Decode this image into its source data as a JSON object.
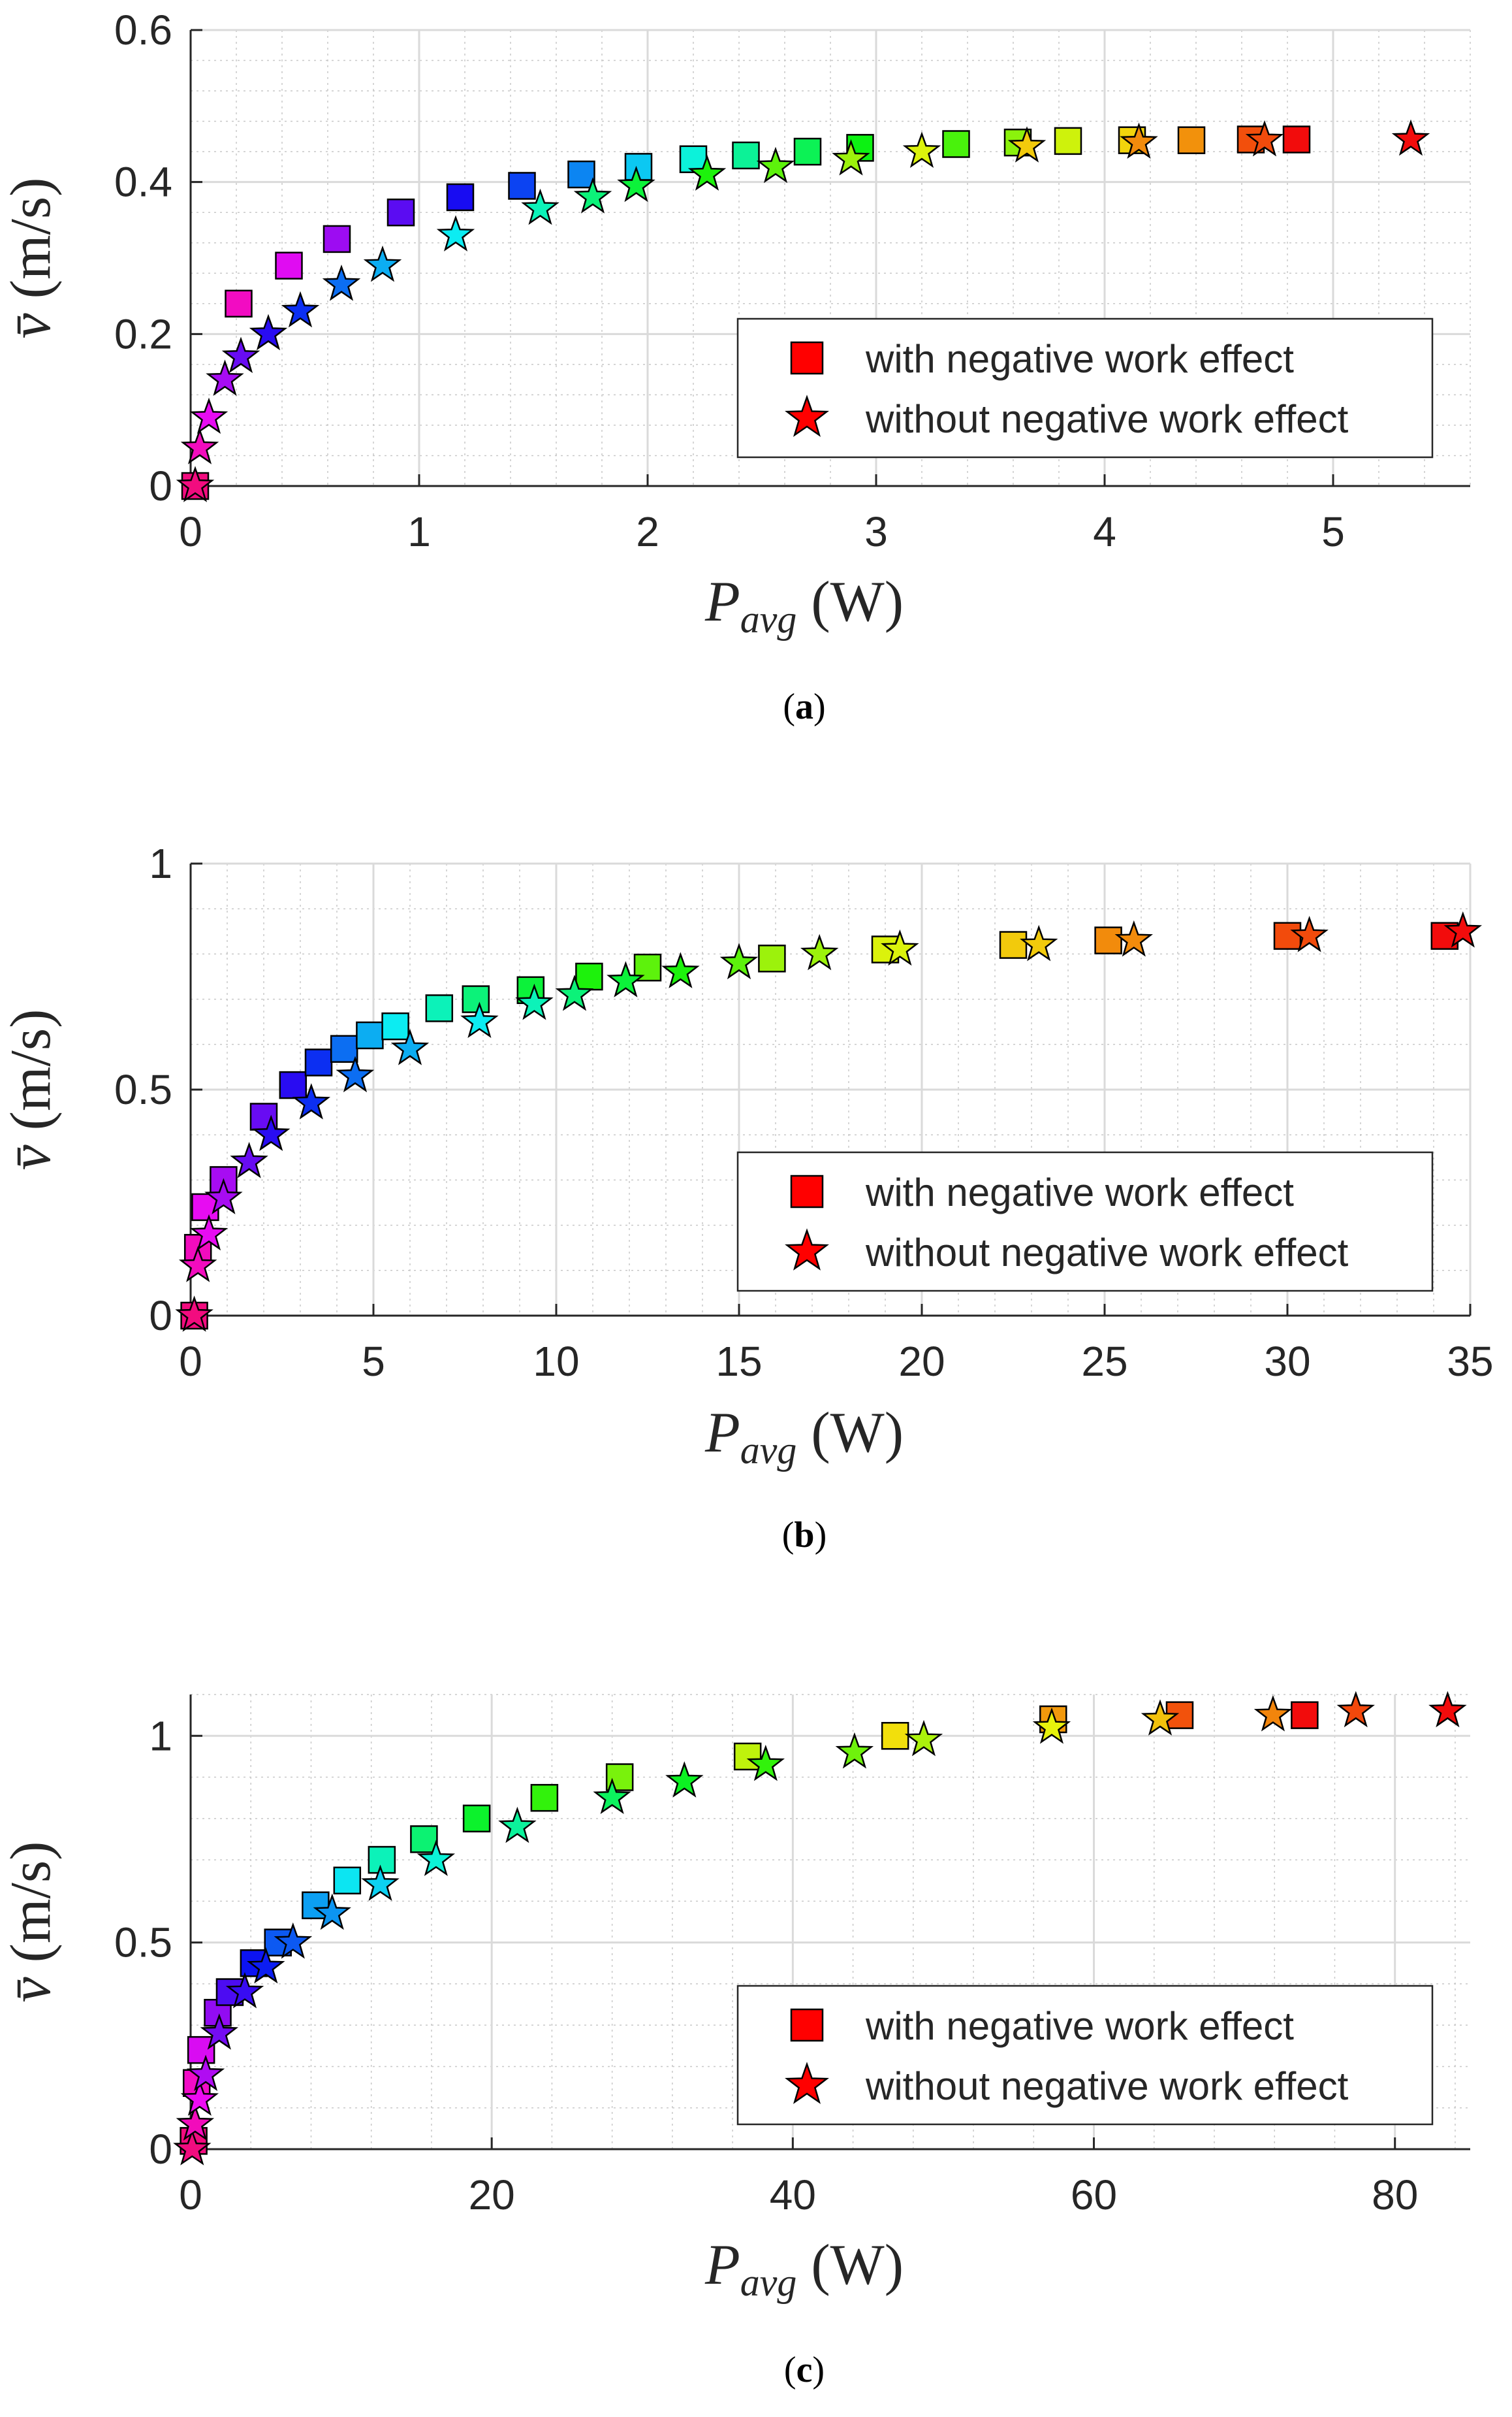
{
  "chart_data": [
    {
      "type": "scatter",
      "caption_letter": "a",
      "xlabel": {
        "main": "P",
        "sub": "avg",
        "unit": "(W)"
      },
      "ylabel": {
        "symbol": "v̄",
        "unit": "(m/s)"
      },
      "xlim": [
        0,
        5.6
      ],
      "ylim": [
        0,
        0.6
      ],
      "xticks": [
        0,
        1,
        2,
        3,
        4,
        5
      ],
      "yticks": [
        0,
        0.2,
        0.4,
        0.6
      ],
      "ytick_labels": [
        "0",
        "0.2",
        "0.4",
        "0.6"
      ],
      "grid": true,
      "legend": {
        "location": "middle-right",
        "entries": [
          "with negative work effect",
          "without negative work effect"
        ]
      },
      "series": [
        {
          "name": "with negative work effect",
          "marker": "square",
          "x": [
            0.02,
            0.21,
            0.43,
            0.64,
            0.92,
            1.18,
            1.45,
            1.71,
            1.96,
            2.2,
            2.43,
            2.7,
            2.93,
            3.35,
            3.62,
            3.84,
            4.12,
            4.38,
            4.64,
            4.84
          ],
          "y": [
            0.0,
            0.24,
            0.29,
            0.325,
            0.36,
            0.38,
            0.395,
            0.41,
            0.42,
            0.43,
            0.435,
            0.44,
            0.445,
            0.45,
            0.452,
            0.454,
            0.455,
            0.455,
            0.456,
            0.456
          ]
        },
        {
          "name": "without negative work effect",
          "marker": "star",
          "x": [
            0.02,
            0.04,
            0.08,
            0.15,
            0.22,
            0.34,
            0.48,
            0.66,
            0.84,
            1.16,
            1.53,
            1.76,
            1.95,
            2.26,
            2.56,
            2.89,
            3.2,
            3.66,
            4.15,
            4.7,
            5.34
          ],
          "y": [
            0.0,
            0.05,
            0.09,
            0.14,
            0.17,
            0.2,
            0.23,
            0.265,
            0.29,
            0.33,
            0.365,
            0.38,
            0.395,
            0.41,
            0.42,
            0.43,
            0.44,
            0.447,
            0.452,
            0.455,
            0.456
          ]
        }
      ]
    },
    {
      "type": "scatter",
      "caption_letter": "b",
      "xlabel": {
        "main": "P",
        "sub": "avg",
        "unit": "(W)"
      },
      "ylabel": {
        "symbol": "v̄",
        "unit": "(m/s)"
      },
      "xlim": [
        0,
        35
      ],
      "ylim": [
        0,
        1
      ],
      "xticks": [
        0,
        5,
        10,
        15,
        20,
        25,
        30,
        35
      ],
      "yticks": [
        0,
        0.5,
        1
      ],
      "ytick_labels": [
        "0",
        "0.5",
        "1"
      ],
      "grid": true,
      "legend": {
        "location": "lower-right",
        "entries": [
          "with negative work effect",
          "without negative work effect"
        ]
      },
      "series": [
        {
          "name": "with negative work effect",
          "marker": "square",
          "x": [
            0.1,
            0.2,
            0.4,
            0.9,
            2.0,
            2.8,
            3.5,
            4.2,
            4.9,
            5.6,
            6.8,
            7.8,
            9.3,
            10.9,
            12.5,
            15.9,
            19.0,
            22.5,
            25.1,
            30.0,
            34.3
          ],
          "y": [
            0.0,
            0.15,
            0.24,
            0.3,
            0.44,
            0.51,
            0.56,
            0.59,
            0.62,
            0.64,
            0.68,
            0.7,
            0.72,
            0.75,
            0.77,
            0.79,
            0.81,
            0.82,
            0.83,
            0.84,
            0.84
          ]
        },
        {
          "name": "without negative work effect",
          "marker": "star",
          "x": [
            0.1,
            0.2,
            0.5,
            0.9,
            1.6,
            2.2,
            3.3,
            4.5,
            6.0,
            7.9,
            9.4,
            10.5,
            11.9,
            13.4,
            15.0,
            17.2,
            19.4,
            23.2,
            25.8,
            30.6,
            34.8
          ],
          "y": [
            0.0,
            0.11,
            0.18,
            0.26,
            0.34,
            0.4,
            0.47,
            0.53,
            0.59,
            0.65,
            0.69,
            0.71,
            0.74,
            0.76,
            0.78,
            0.8,
            0.81,
            0.82,
            0.83,
            0.84,
            0.85
          ]
        }
      ]
    },
    {
      "type": "scatter",
      "caption_letter": "c",
      "xlabel": {
        "main": "P",
        "sub": "avg",
        "unit": "(W)"
      },
      "ylabel": {
        "symbol": "v̄",
        "unit": "(m/s)"
      },
      "xlim": [
        0,
        85
      ],
      "ylim": [
        0,
        1.1
      ],
      "xticks": [
        0,
        20,
        40,
        60,
        80
      ],
      "yticks": [
        0,
        0.5,
        1
      ],
      "ytick_labels": [
        "0",
        "0.5",
        "1"
      ],
      "grid": true,
      "legend": {
        "location": "lower-right",
        "entries": [
          "with negative work effect",
          "without negative work effect"
        ]
      },
      "series": [
        {
          "name": "with negative work effect",
          "marker": "square",
          "x": [
            0.2,
            0.4,
            0.7,
            1.8,
            2.6,
            4.2,
            5.8,
            8.3,
            10.4,
            12.7,
            15.5,
            19.0,
            23.5,
            28.5,
            37.0,
            46.8,
            57.3,
            65.7,
            74.0
          ],
          "y": [
            0.02,
            0.16,
            0.24,
            0.33,
            0.38,
            0.45,
            0.5,
            0.59,
            0.65,
            0.7,
            0.75,
            0.8,
            0.85,
            0.9,
            0.95,
            1.0,
            1.04,
            1.05,
            1.05
          ]
        },
        {
          "name": "without negative work effect",
          "marker": "star",
          "x": [
            0.1,
            0.3,
            0.6,
            1.0,
            1.9,
            3.6,
            5.0,
            6.8,
            9.4,
            12.6,
            16.3,
            21.7,
            28.0,
            32.8,
            38.2,
            44.1,
            48.7,
            57.2,
            64.4,
            71.9,
            77.4,
            83.5
          ],
          "y": [
            0.0,
            0.06,
            0.12,
            0.18,
            0.28,
            0.38,
            0.44,
            0.5,
            0.57,
            0.64,
            0.7,
            0.78,
            0.85,
            0.89,
            0.93,
            0.96,
            0.99,
            1.02,
            1.04,
            1.05,
            1.06,
            1.06
          ]
        }
      ]
    }
  ]
}
